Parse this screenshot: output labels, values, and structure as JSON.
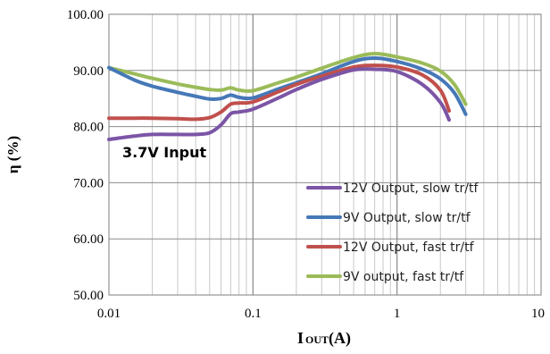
{
  "chart_data": {
    "type": "line",
    "xscale": "log",
    "xlim": [
      0.01,
      10
    ],
    "ylim": [
      50,
      100
    ],
    "x_ticks": [
      "0.01",
      "0.1",
      "1",
      "10"
    ],
    "y_ticks": [
      "50.00",
      "60.00",
      "70.00",
      "80.00",
      "90.00",
      "100.00"
    ],
    "ylabel": "η (%)",
    "xlabel_main": "I",
    "xlabel_sub": "OUT",
    "xlabel_tail": "(A)",
    "annotation": "3.7V Input",
    "grid": true,
    "legend_position": "bottom-right",
    "series": [
      {
        "name": "12V Output, slow tr/tf",
        "color": "#7b55a6",
        "x": [
          0.01,
          0.015,
          0.02,
          0.03,
          0.04,
          0.05,
          0.06,
          0.07,
          0.08,
          0.1,
          0.15,
          0.2,
          0.3,
          0.5,
          0.7,
          1.0,
          1.5,
          2.0,
          2.3
        ],
        "y": [
          77.7,
          78.3,
          78.6,
          78.6,
          78.6,
          78.9,
          80.3,
          82.3,
          82.6,
          83.1,
          85.1,
          86.6,
          88.4,
          90.1,
          90.2,
          89.8,
          87.5,
          84.3,
          81.2
        ]
      },
      {
        "name": "9V Output, slow tr/tf",
        "color": "#4678b8",
        "x": [
          0.01,
          0.015,
          0.02,
          0.03,
          0.04,
          0.05,
          0.06,
          0.07,
          0.08,
          0.1,
          0.15,
          0.2,
          0.3,
          0.5,
          0.7,
          1.0,
          1.5,
          2.0,
          2.5,
          3.0
        ],
        "y": [
          90.5,
          88.3,
          87.2,
          86.1,
          85.4,
          84.9,
          85.0,
          85.6,
          85.2,
          85.1,
          86.7,
          87.8,
          89.4,
          91.6,
          92.2,
          91.6,
          90.2,
          88.5,
          86.0,
          82.2
        ]
      },
      {
        "name": "12V Output, fast tr/tf",
        "color": "#c0504d",
        "x": [
          0.01,
          0.015,
          0.02,
          0.03,
          0.04,
          0.05,
          0.06,
          0.07,
          0.08,
          0.1,
          0.15,
          0.2,
          0.3,
          0.5,
          0.7,
          1.0,
          1.5,
          2.0,
          2.3
        ],
        "y": [
          81.5,
          81.5,
          81.5,
          81.4,
          81.3,
          81.6,
          82.6,
          84.0,
          84.2,
          84.4,
          86.2,
          87.5,
          89.0,
          90.6,
          90.9,
          90.6,
          89.2,
          86.5,
          82.8
        ]
      },
      {
        "name": "9V output, fast tr/tf",
        "color": "#9bbb59",
        "x": [
          0.01,
          0.015,
          0.02,
          0.03,
          0.04,
          0.05,
          0.06,
          0.07,
          0.08,
          0.1,
          0.15,
          0.2,
          0.3,
          0.5,
          0.7,
          1.0,
          1.5,
          2.0,
          2.5,
          3.0
        ],
        "y": [
          90.5,
          89.4,
          88.6,
          87.6,
          87.0,
          86.6,
          86.5,
          86.9,
          86.5,
          86.4,
          87.8,
          88.8,
          90.4,
          92.3,
          93.0,
          92.4,
          91.3,
          89.9,
          87.5,
          84.0
        ]
      }
    ]
  }
}
